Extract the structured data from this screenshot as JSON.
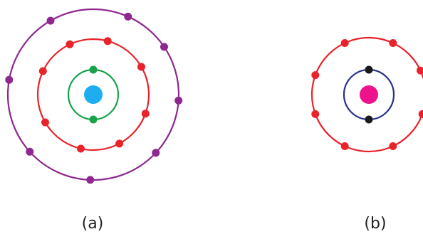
{
  "atoms": [
    {
      "label": "(a)",
      "nucleus_color": "#1EAEF0",
      "shells": [
        {
          "color": "#16A34A",
          "electrons": 2,
          "electron_color": "#16A34A"
        },
        {
          "color": "#E8232A",
          "electrons": 8,
          "electron_color": "#E8232A"
        },
        {
          "color": "#8E278F",
          "electrons": 8,
          "electron_color": "#8E278F"
        }
      ]
    },
    {
      "label": "(b)",
      "nucleus_color": "#EC138C",
      "shells": [
        {
          "color": "#28318A",
          "electrons": 2,
          "electron_color": "#1A1A1A"
        },
        {
          "color": "#E8232A",
          "electrons": 8,
          "electron_color": "#E8232A"
        }
      ]
    }
  ]
}
